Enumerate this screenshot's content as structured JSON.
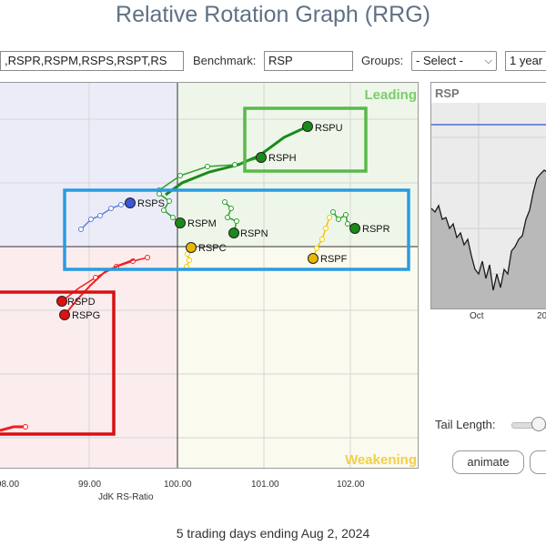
{
  "header": {
    "title": "Relative Rotation Graph (RRG)"
  },
  "toolbar": {
    "symbols_value": ",RSPR,RSPM,RSPS,RSPT,RS",
    "benchmark_label": "Benchmark:",
    "benchmark_value": "RSP",
    "groups_label": "Groups:",
    "groups_value": "- Select -",
    "period_value": "1 year"
  },
  "rrg": {
    "quadrant_labels": {
      "leading": "Leading",
      "weakening": "Weakening"
    },
    "x_ticks": [
      "98.00",
      "99.00",
      "100.00",
      "101.00",
      "102.00"
    ],
    "x_axis_title": "JdK RS-Ratio",
    "symbols": {
      "rspu": "RSPU",
      "rsph": "RSPH",
      "rsps": "RSPS",
      "rspm": "RSPM",
      "rspn": "RSPN",
      "rspr": "RSPR",
      "rspc": "RSPC",
      "rspf": "RSPF",
      "rspd": "RSPD",
      "rspg": "RSPG"
    }
  },
  "mini_chart": {
    "title": "RSP",
    "x_label_1": "Oct",
    "x_label_2": "20"
  },
  "controls": {
    "tail_length_label": "Tail Length:",
    "animate_label": "animate"
  },
  "footer": {
    "text": "5 trading days ending Aug 2, 2024"
  },
  "colors": {
    "leading": "#1a8a1a",
    "improving": "#3a57d6",
    "weakening": "#e6b800",
    "lagging": "#e01010",
    "green_box": "#5ab84a",
    "blue_box": "#2a9be0",
    "red_box": "#d81010"
  }
}
